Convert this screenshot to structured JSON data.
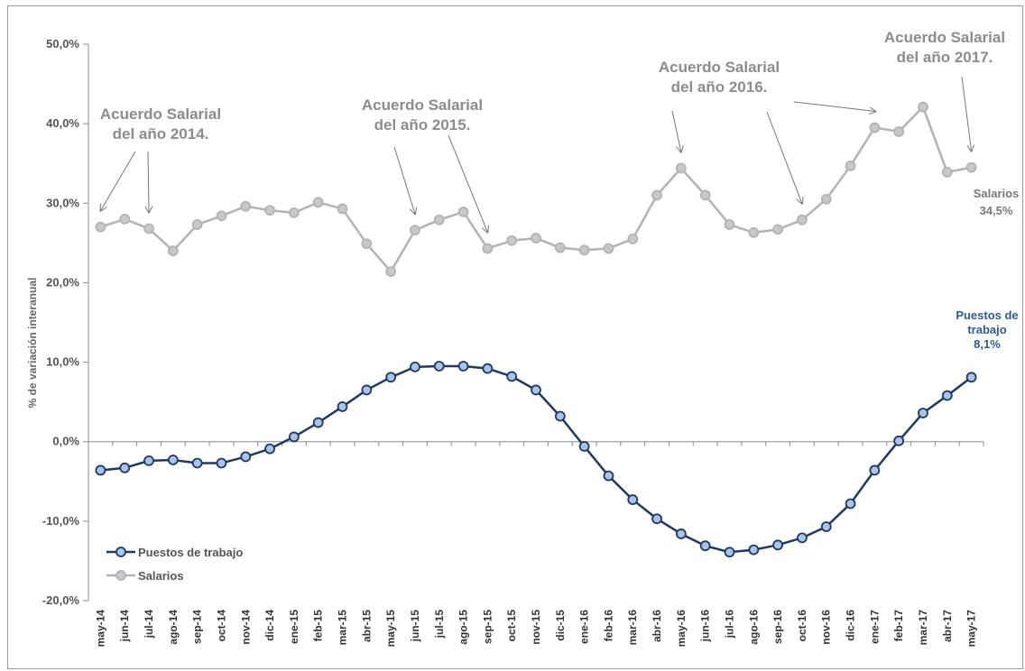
{
  "chart_data": {
    "type": "line",
    "title": "",
    "xlabel": "",
    "ylabel": "% de variación interanual",
    "ylim": [
      -20,
      50
    ],
    "yticks": [
      "-20,0%",
      "-10,0%",
      "0,0%",
      "10,0%",
      "20,0%",
      "30,0%",
      "40,0%",
      "50,0%"
    ],
    "yticks_values": [
      -20,
      -10,
      0,
      10,
      20,
      30,
      40,
      50
    ],
    "categories": [
      "may-14",
      "jun-14",
      "jul-14",
      "ago-14",
      "sep-14",
      "oct-14",
      "nov-14",
      "dic-14",
      "ene-15",
      "feb-15",
      "mar-15",
      "abr-15",
      "may-15",
      "jun-15",
      "jul-15",
      "ago-15",
      "sep-15",
      "oct-15",
      "nov-15",
      "dic-15",
      "ene-16",
      "feb-16",
      "mar-16",
      "abr-16",
      "may-16",
      "jun-16",
      "jul-16",
      "ago-16",
      "sep-16",
      "oct-16",
      "nov-16",
      "dic-16",
      "ene-17",
      "feb-17",
      "mar-17",
      "abr-17",
      "may-17"
    ],
    "series": [
      {
        "name": "Puestos de trabajo",
        "color": "#1f3864",
        "marker_fill": "#a9c4e4",
        "values": [
          -3.6,
          -3.3,
          -2.4,
          -2.3,
          -2.7,
          -2.7,
          -1.9,
          -0.9,
          0.6,
          2.4,
          4.4,
          6.5,
          8.1,
          9.4,
          9.5,
          9.5,
          9.2,
          8.2,
          6.5,
          3.2,
          -0.6,
          -4.3,
          -7.3,
          -9.7,
          -11.6,
          -13.1,
          -13.9,
          -13.6,
          -13.0,
          -12.1,
          -10.7,
          -7.8,
          -3.6,
          0.1,
          3.6,
          5.8,
          8.1
        ]
      },
      {
        "name": "Salarios",
        "color": "#b3b3b3",
        "marker_fill": "#c8c8c8",
        "values": [
          27.0,
          28.0,
          26.8,
          24.0,
          27.3,
          28.4,
          29.6,
          29.1,
          28.8,
          30.1,
          29.3,
          24.9,
          21.4,
          26.6,
          27.9,
          28.9,
          24.3,
          25.3,
          25.6,
          24.4,
          24.1,
          24.3,
          25.5,
          31.0,
          34.4,
          31.0,
          27.3,
          26.3,
          26.7,
          27.9,
          30.5,
          34.7,
          39.5,
          39.0,
          42.1,
          33.9,
          34.5
        ]
      }
    ],
    "legend_position": "lower-left",
    "grid": false,
    "end_labels": {
      "salarios": [
        "Salarios",
        "34,5%"
      ],
      "puestos": [
        "Puestos de",
        "trabajo",
        "8,1%"
      ]
    },
    "annotations": [
      {
        "lines": [
          "Acuerdo Salarial",
          "del año 2014."
        ],
        "arrow_targets": [
          0,
          2
        ]
      },
      {
        "lines": [
          "Acuerdo Salarial",
          "del año 2015."
        ],
        "arrow_targets": [
          13,
          16
        ]
      },
      {
        "lines": [
          "Acuerdo Salarial",
          "del año 2016."
        ],
        "arrow_targets": [
          24,
          29
        ]
      },
      {
        "lines": [
          "Acuerdo Salarial",
          "del año 2017."
        ],
        "arrow_targets": [
          32,
          36
        ]
      }
    ]
  }
}
